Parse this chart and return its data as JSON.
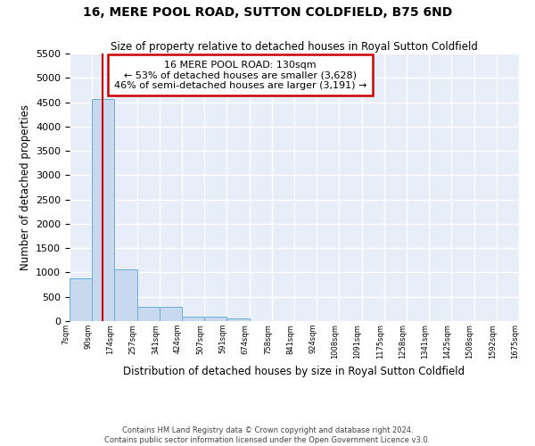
{
  "title": "16, MERE POOL ROAD, SUTTON COLDFIELD, B75 6ND",
  "subtitle": "Size of property relative to detached houses in Royal Sutton Coldfield",
  "xlabel": "Distribution of detached houses by size in Royal Sutton Coldfield",
  "ylabel": "Number of detached properties",
  "footer_line1": "Contains HM Land Registry data © Crown copyright and database right 2024.",
  "footer_line2": "Contains public sector information licensed under the Open Government Licence v3.0.",
  "annotation_title": "16 MERE POOL ROAD: 130sqm",
  "annotation_line1": "← 53% of detached houses are smaller (3,628)",
  "annotation_line2": "46% of semi-detached houses are larger (3,191) →",
  "property_size": 130,
  "bin_edges": [
    7,
    90,
    174,
    257,
    341,
    424,
    507,
    591,
    674,
    758,
    841,
    924,
    1008,
    1091,
    1175,
    1258,
    1341,
    1425,
    1508,
    1592,
    1675
  ],
  "bin_counts": [
    880,
    4560,
    1060,
    290,
    285,
    90,
    85,
    55,
    0,
    0,
    0,
    0,
    0,
    0,
    0,
    0,
    0,
    0,
    0,
    0
  ],
  "bar_color": "#c8d9ef",
  "bar_edgecolor": "#6aaed6",
  "vline_color": "#cc0000",
  "vline_x": 130,
  "annotation_box_color": "#cc0000",
  "background_color": "#e8eef8",
  "grid_color": "#ffffff",
  "ylim": [
    0,
    5500
  ],
  "yticks": [
    0,
    500,
    1000,
    1500,
    2000,
    2500,
    3000,
    3500,
    4000,
    4500,
    5000,
    5500
  ]
}
